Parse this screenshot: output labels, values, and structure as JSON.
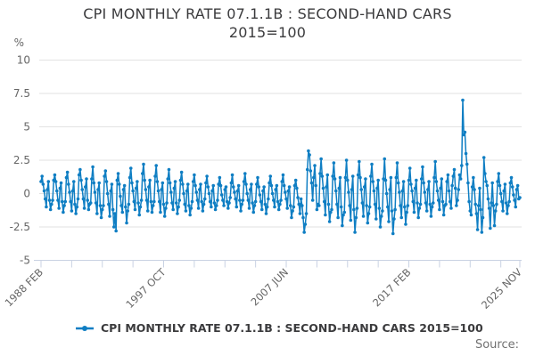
{
  "title": {
    "line1": "CPI MONTHLY RATE 07.1.1B : SECOND-HAND CARS",
    "line2": "2015=100"
  },
  "legend": {
    "label": "CPI MONTHLY RATE 07.1.1B : SECOND-HAND CARS 2015=100"
  },
  "source_label": "Source:",
  "colors": {
    "line": "#0f7ec3",
    "grid": "#e2e2e2",
    "axis": "#c9d2e3",
    "tick_text": "#666666",
    "title_text": "#3b3b3d",
    "source_text": "#707070"
  },
  "chart_data": {
    "type": "line",
    "title": "CPI MONTHLY RATE 07.1.1B : SECOND-HAND CARS 2015=100",
    "xlabel": "",
    "ylabel": "%",
    "ylim": [
      -5,
      10
    ],
    "y_ticks": [
      10,
      7.5,
      5,
      2.5,
      0,
      -2.5,
      -5
    ],
    "grid": "horizontal",
    "legend_position": "bottom",
    "x_range": {
      "start": "1988 FEB",
      "end": "2025 NOV",
      "frequency": "monthly",
      "n_points": 454
    },
    "x_tick_labels": [
      {
        "label": "1988 FEB",
        "month_index": 0
      },
      {
        "label": "1997 OCT",
        "month_index": 116
      },
      {
        "label": "2007 JUN",
        "month_index": 232
      },
      {
        "label": "2017 FEB",
        "month_index": 348
      },
      {
        "label": "2025 NOV",
        "month_index": 453
      }
    ],
    "x_minor_tick_month_indices": [
      0,
      29,
      58,
      87,
      116,
      145,
      174,
      203,
      232,
      261,
      290,
      319,
      348,
      377,
      406,
      435,
      453
    ],
    "series": [
      {
        "name": "CPI MONTHLY RATE 07.1.1B : SECOND-HAND CARS 2015=100",
        "values": [
          0.9,
          1.3,
          0.7,
          0.2,
          -0.4,
          -1.0,
          0.3,
          0.9,
          -0.5,
          -1.2,
          -0.8,
          -0.5,
          1.0,
          1.4,
          0.9,
          0.2,
          -0.5,
          -1.1,
          0.4,
          0.8,
          -0.6,
          -1.4,
          -0.9,
          -0.6,
          1.2,
          1.6,
          0.7,
          0.1,
          -0.6,
          -1.3,
          0.2,
          0.9,
          -0.8,
          -1.5,
          -1.0,
          -0.4,
          1.4,
          1.8,
          1.0,
          0.3,
          -0.4,
          -1.1,
          0.5,
          1.1,
          -0.5,
          -1.2,
          -0.8,
          -0.7,
          1.1,
          2.0,
          0.8,
          0.1,
          -0.7,
          -1.5,
          0.3,
          0.8,
          -0.9,
          -1.8,
          -1.2,
          -0.9,
          1.3,
          1.7,
          0.9,
          0.0,
          -0.8,
          -1.7,
          0.2,
          0.7,
          -1.2,
          -2.5,
          -1.5,
          -2.8,
          1.0,
          1.5,
          0.7,
          -0.2,
          -0.9,
          -1.4,
          0.3,
          0.6,
          -1.0,
          -2.2,
          -1.3,
          -0.8,
          1.2,
          1.9,
          0.8,
          0.2,
          -0.6,
          -1.2,
          0.4,
          0.9,
          -0.7,
          -1.6,
          -1.0,
          -0.5,
          1.5,
          2.2,
          1.0,
          0.3,
          -0.5,
          -1.3,
          0.5,
          1.0,
          -0.6,
          -1.4,
          -0.9,
          -0.6,
          1.3,
          2.1,
          0.9,
          0.2,
          -0.6,
          -1.4,
          0.3,
          0.8,
          -0.8,
          -1.7,
          -1.1,
          -0.7,
          1.1,
          1.8,
          0.8,
          0.1,
          -0.7,
          -1.2,
          0.4,
          0.9,
          -0.7,
          -1.5,
          -1.0,
          -0.5,
          1.0,
          1.6,
          0.7,
          0.0,
          -0.8,
          -1.3,
          0.2,
          0.7,
          -0.9,
          -1.6,
          -1.1,
          -0.6,
          0.9,
          1.4,
          0.6,
          0.1,
          -0.5,
          -1.1,
          0.3,
          0.7,
          -0.6,
          -1.3,
          -0.8,
          -0.4,
          0.8,
          1.3,
          0.5,
          0.0,
          -0.6,
          -1.0,
          0.2,
          0.6,
          -0.7,
          -1.2,
          -0.9,
          -0.5,
          0.7,
          1.2,
          0.6,
          -0.1,
          -0.5,
          -0.9,
          0.3,
          0.5,
          -0.6,
          -1.1,
          -0.7,
          -0.3,
          0.8,
          1.4,
          0.5,
          0.1,
          -0.4,
          -1.0,
          0.2,
          0.6,
          -0.5,
          -1.3,
          -0.8,
          -0.5,
          0.9,
          1.5,
          0.7,
          0.0,
          -0.5,
          -1.1,
          0.3,
          0.7,
          -0.7,
          -1.4,
          -0.9,
          -0.6,
          0.7,
          1.2,
          0.5,
          -0.1,
          -0.6,
          -1.2,
          0.2,
          0.5,
          -0.8,
          -1.5,
          -1.0,
          -0.4,
          0.8,
          1.3,
          0.6,
          0.0,
          -0.5,
          -1.0,
          0.3,
          0.6,
          -0.6,
          -1.2,
          -0.8,
          -0.5,
          0.9,
          1.4,
          0.6,
          0.1,
          -0.4,
          -1.1,
          0.2,
          0.5,
          -0.9,
          -1.8,
          -1.3,
          -1.0,
          0.6,
          1.0,
          0.4,
          -0.3,
          -0.8,
          -1.5,
          -0.4,
          -0.9,
          -1.8,
          -2.9,
          -2.3,
          -1.5,
          1.8,
          3.2,
          2.9,
          1.7,
          0.8,
          -0.5,
          1.2,
          2.1,
          0.6,
          -1.2,
          -0.8,
          -0.9,
          1.5,
          2.6,
          1.3,
          0.4,
          -0.6,
          -1.6,
          0.5,
          1.4,
          -0.8,
          -2.1,
          -1.4,
          -1.2,
          1.3,
          2.3,
          1.1,
          0.2,
          -0.8,
          -1.8,
          0.4,
          1.2,
          -1.0,
          -2.4,
          -1.6,
          -1.4,
          1.2,
          2.5,
          1.0,
          0.1,
          -0.9,
          -2.0,
          0.3,
          1.3,
          -1.2,
          -2.9,
          -1.8,
          -1.1,
          1.4,
          2.4,
          1.2,
          0.3,
          -0.7,
          -1.7,
          0.5,
          1.1,
          -0.9,
          -2.2,
          -1.5,
          -1.0,
          1.3,
          2.2,
          0.9,
          0.2,
          -0.8,
          -1.9,
          0.4,
          1.0,
          -1.1,
          -2.5,
          -1.7,
          -1.3,
          1.1,
          2.6,
          1.0,
          0.0,
          -1.0,
          -2.1,
          0.3,
          1.2,
          -1.3,
          -3.0,
          -1.9,
          -1.2,
          1.2,
          2.3,
          0.8,
          0.1,
          -0.9,
          -1.8,
          0.2,
          0.9,
          -1.0,
          -2.3,
          -1.4,
          -0.9,
          1.0,
          1.9,
          0.7,
          0.2,
          -0.6,
          -1.4,
          0.4,
          1.0,
          -0.7,
          -1.8,
          -1.1,
          -0.8,
          1.1,
          2.0,
          0.8,
          0.1,
          -0.7,
          -1.3,
          0.3,
          0.9,
          -0.8,
          -1.7,
          -1.0,
          -0.7,
          1.2,
          2.4,
          0.9,
          0.2,
          -0.5,
          -1.2,
          0.4,
          1.1,
          -0.6,
          -1.6,
          -0.9,
          -0.8,
          0.9,
          1.4,
          0.2,
          -0.6,
          -1.1,
          0.6,
          1.3,
          1.8,
          0.4,
          -0.9,
          -0.5,
          0.3,
          1.4,
          1.1,
          2.1,
          7.0,
          4.4,
          4.6,
          3.0,
          2.2,
          0.8,
          -0.6,
          -1.3,
          -1.6,
          0.5,
          1.2,
          0.3,
          -0.8,
          -1.5,
          -2.7,
          -0.9,
          0.4,
          -1.2,
          -2.9,
          -1.8,
          2.7,
          1.5,
          0.9,
          0.6,
          -0.4,
          -1.1,
          -2.6,
          -0.7,
          0.8,
          -0.9,
          -2.4,
          -1.3,
          -0.8,
          0.9,
          1.5,
          0.6,
          0.0,
          -0.6,
          -1.3,
          0.2,
          0.7,
          -0.7,
          -1.5,
          -0.9,
          -0.6,
          0.8,
          1.2,
          0.5,
          -0.1,
          -0.5,
          -1.0,
          0.3,
          0.6,
          -0.4,
          -0.3
        ]
      }
    ]
  }
}
